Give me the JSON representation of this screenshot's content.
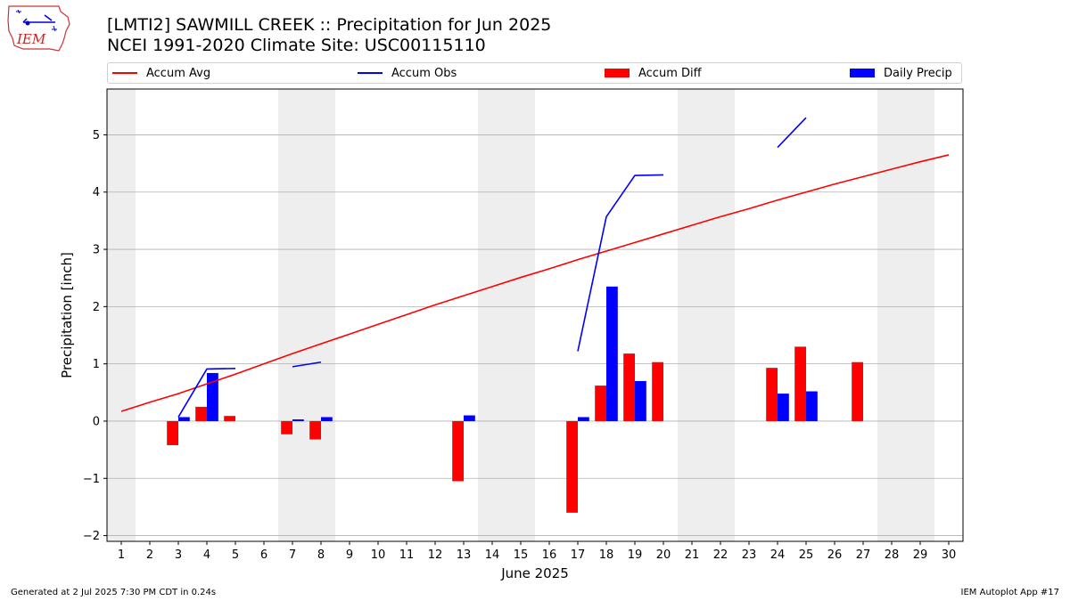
{
  "header": {
    "title_line1": "[LMTI2] SAWMILL CREEK :: Precipitation for Jun 2025",
    "title_line2": "NCEI 1991-2020 Climate Site: USC00115110",
    "logo_text": "IEM"
  },
  "footer": {
    "left": "Generated at 2 Jul 2025 7:30 PM CDT in 0.24s",
    "right": "IEM Autoplot App #17"
  },
  "colors": {
    "avg": "#ff0000",
    "obs": "#0000ff",
    "diff": "#ff0000",
    "daily": "#0000ff",
    "weekend_band": "#eeeeee",
    "grid": "#b0b0b0"
  },
  "chart_data": {
    "type": "bar",
    "xlabel": "June 2025",
    "ylabel": "Precipitation [inch]",
    "xlim": [
      0.5,
      30.5
    ],
    "ylim": [
      -2.1,
      5.8
    ],
    "yticks": [
      -2,
      -1,
      0,
      1,
      2,
      3,
      4,
      5
    ],
    "ytick_labels": [
      "−2",
      "−1",
      "0",
      "1",
      "2",
      "3",
      "4",
      "5"
    ],
    "x": [
      1,
      2,
      3,
      4,
      5,
      6,
      7,
      8,
      9,
      10,
      11,
      12,
      13,
      14,
      15,
      16,
      17,
      18,
      19,
      20,
      21,
      22,
      23,
      24,
      25,
      26,
      27,
      28,
      29,
      30
    ],
    "grid": "horizontal",
    "legend_position": "top",
    "weekend_days": [
      1,
      7,
      8,
      14,
      15,
      21,
      22,
      28,
      29
    ],
    "series": [
      {
        "name": "Accum Avg",
        "kind": "line",
        "values": [
          0.17,
          0.33,
          0.48,
          0.65,
          0.82,
          1.0,
          1.18,
          1.35,
          1.52,
          1.69,
          1.86,
          2.03,
          2.19,
          2.35,
          2.51,
          2.66,
          2.82,
          2.97,
          3.12,
          3.27,
          3.42,
          3.57,
          3.71,
          3.86,
          4.0,
          4.14,
          4.27,
          4.4,
          4.53,
          4.65
        ]
      },
      {
        "name": "Accum Obs",
        "kind": "line",
        "values": [
          null,
          null,
          0.07,
          0.91,
          0.92,
          null,
          0.95,
          1.03,
          null,
          null,
          null,
          null,
          null,
          null,
          null,
          null,
          1.22,
          3.57,
          4.29,
          4.3,
          null,
          null,
          null,
          4.78,
          5.3,
          null,
          null,
          null,
          null,
          null
        ]
      },
      {
        "name": "Accum Diff",
        "kind": "bar",
        "values": [
          null,
          null,
          -0.42,
          0.25,
          0.09,
          null,
          -0.23,
          -0.32,
          null,
          null,
          null,
          null,
          -1.05,
          null,
          null,
          null,
          -1.6,
          0.62,
          1.18,
          1.03,
          null,
          null,
          null,
          0.93,
          1.3,
          null,
          1.03,
          null,
          null,
          null
        ]
      },
      {
        "name": "Daily Precip",
        "kind": "bar",
        "values": [
          null,
          null,
          0.07,
          0.84,
          null,
          null,
          0.03,
          0.07,
          null,
          null,
          null,
          null,
          0.1,
          null,
          null,
          null,
          0.07,
          2.35,
          0.7,
          null,
          null,
          null,
          null,
          0.48,
          0.52,
          null,
          null,
          null,
          null,
          null
        ]
      }
    ]
  }
}
